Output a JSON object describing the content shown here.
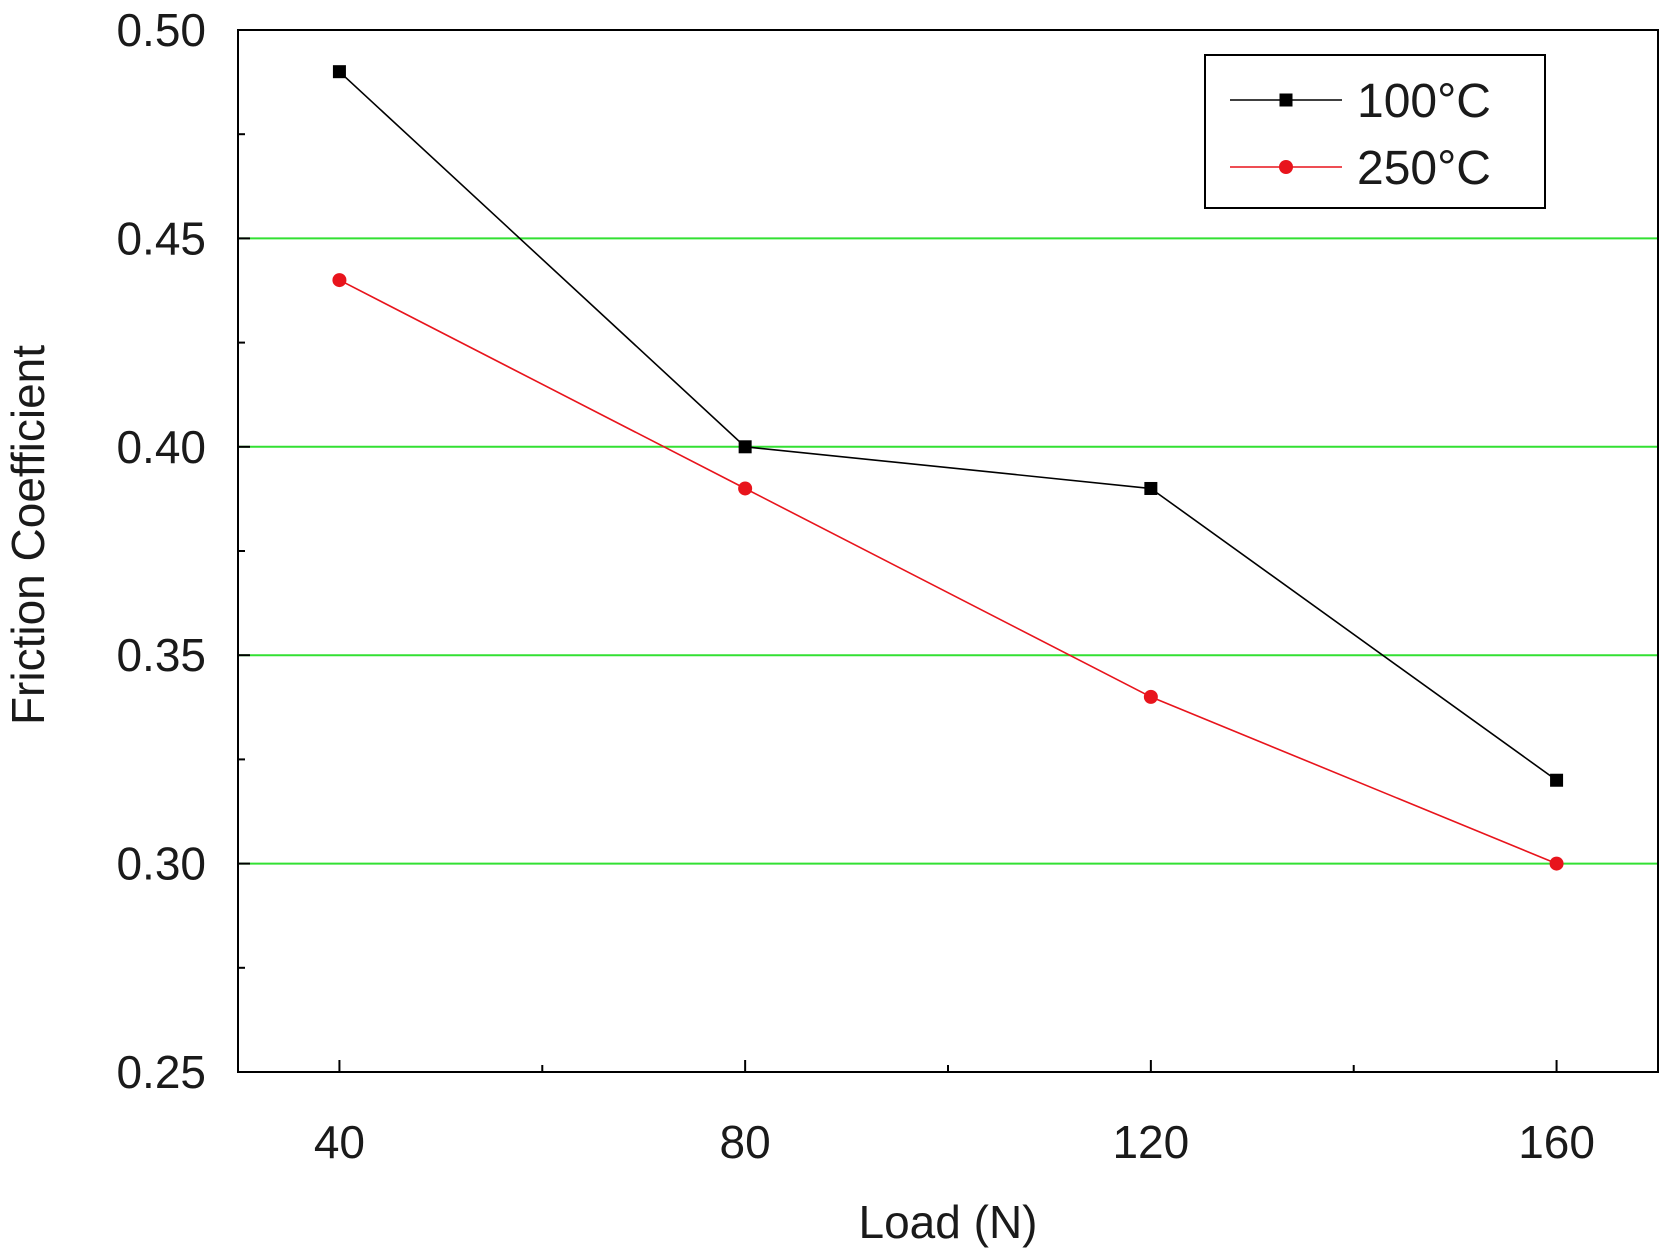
{
  "chart_data": {
    "type": "line",
    "xlabel": "Load (N)",
    "ylabel": "Friction Coefficient",
    "x": [
      40,
      80,
      120,
      160
    ],
    "xlim": [
      30,
      170
    ],
    "ylim": [
      0.25,
      0.5
    ],
    "x_ticks": [
      "40",
      "80",
      "120",
      "160"
    ],
    "x_tick_values": [
      40,
      80,
      120,
      160
    ],
    "x_minor_tick_values": [
      60,
      100,
      140
    ],
    "y_ticks": [
      "0.25",
      "0.30",
      "0.35",
      "0.40",
      "0.45",
      "0.50"
    ],
    "y_tick_values": [
      0.25,
      0.3,
      0.35,
      0.4,
      0.45,
      0.5
    ],
    "y_minor_tick_values": [
      0.275,
      0.325,
      0.375,
      0.425,
      0.475
    ],
    "grid_y_values": [
      0.3,
      0.35,
      0.4,
      0.45
    ],
    "grid_color": "#33e033",
    "legend_position": "top-right",
    "series": [
      {
        "name": "100°C",
        "values": [
          0.49,
          0.4,
          0.39,
          0.32
        ],
        "color": "#000000",
        "marker": "square"
      },
      {
        "name": "250°C",
        "values": [
          0.44,
          0.39,
          0.34,
          0.3
        ],
        "color": "#e8141c",
        "marker": "circle"
      }
    ]
  }
}
